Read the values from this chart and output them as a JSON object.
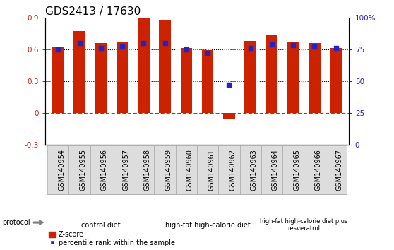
{
  "title": "GDS2413 / 17630",
  "samples": [
    "GSM140954",
    "GSM140955",
    "GSM140956",
    "GSM140957",
    "GSM140958",
    "GSM140959",
    "GSM140960",
    "GSM140961",
    "GSM140962",
    "GSM140963",
    "GSM140964",
    "GSM140965",
    "GSM140966",
    "GSM140967"
  ],
  "z_scores": [
    0.62,
    0.77,
    0.66,
    0.67,
    0.9,
    0.88,
    0.61,
    0.59,
    -0.06,
    0.68,
    0.73,
    0.67,
    0.66,
    0.61
  ],
  "percentile_ranks": [
    75,
    80,
    76,
    77,
    80,
    80,
    75,
    72,
    47,
    76,
    79,
    78,
    77,
    76
  ],
  "bar_color": "#cc2200",
  "dot_color": "#2222cc",
  "ylim_left": [
    -0.3,
    0.9
  ],
  "ylim_right": [
    0,
    100
  ],
  "yticks_left": [
    -0.3,
    0.0,
    0.3,
    0.6,
    0.9
  ],
  "yticks_right": [
    0,
    25,
    50,
    75,
    100
  ],
  "ytick_labels_right": [
    "0",
    "25",
    "50",
    "75",
    "100%"
  ],
  "dotted_lines": [
    0.3,
    0.6
  ],
  "groups": [
    {
      "label": "control diet",
      "start": 0,
      "end": 4,
      "color": "#cceecc"
    },
    {
      "label": "high-fat high-calorie diet",
      "start": 5,
      "end": 9,
      "color": "#99dd99"
    },
    {
      "label": "high-fat high-calorie diet plus\nresveratrol",
      "start": 10,
      "end": 13,
      "color": "#99dd99"
    }
  ],
  "protocol_label": "protocol",
  "legend_zscore": "Z-score",
  "legend_percentile": "percentile rank within the sample",
  "bar_width": 0.55,
  "background_color": "#ffffff",
  "title_fontsize": 11,
  "tick_fontsize": 7.5,
  "label_fontsize": 7,
  "axis_color_left": "#cc2200",
  "axis_color_right": "#2222cc",
  "cell_bg": "#dddddd",
  "cell_edge": "#aaaaaa"
}
